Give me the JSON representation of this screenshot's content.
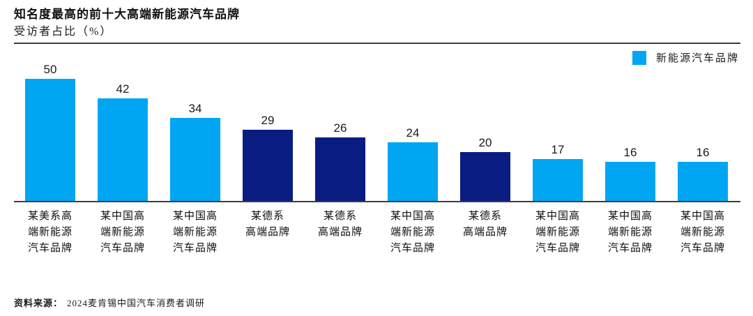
{
  "header": {
    "title": "知名度最高的前十大高端新能源汽车品牌",
    "subtitle": "受访者占比（%）"
  },
  "legend": {
    "label": "新能源汽车品牌",
    "swatch_color": "#00A6F2"
  },
  "chart_data": {
    "type": "bar",
    "title": "知名度最高的前十大高端新能源汽车品牌",
    "ylabel": "受访者占比（%）",
    "xlabel": "",
    "ylim": [
      0,
      56.5
    ],
    "grid": false,
    "legend_entries": [
      "新能源汽车品牌"
    ],
    "legend_position": "top-right",
    "categories": [
      "某美系高端新能源汽车品牌",
      "某中国高端新能源汽车品牌",
      "某中国高端新能源汽车品牌",
      "某德系高端品牌",
      "某德系高端品牌",
      "某中国高端新能源汽车品牌",
      "某德系高端品牌",
      "某中国高端新能源汽车品牌",
      "某中国高端新能源汽车品牌",
      "某中国高端新能源汽车品牌"
    ],
    "category_lines": [
      [
        "某美系高",
        "端新能源",
        "汽车品牌"
      ],
      [
        "某中国高",
        "端新能源",
        "汽车品牌"
      ],
      [
        "某中国高",
        "端新能源",
        "汽车品牌"
      ],
      [
        "某德系",
        "高端品牌"
      ],
      [
        "某德系",
        "高端品牌"
      ],
      [
        "某中国高",
        "端新能源",
        "汽车品牌"
      ],
      [
        "某德系",
        "高端品牌"
      ],
      [
        "某中国高",
        "端新能源",
        "汽车品牌"
      ],
      [
        "某中国高",
        "端新能源",
        "汽车品牌"
      ],
      [
        "某中国高",
        "端新能源",
        "汽车品牌"
      ]
    ],
    "values": [
      50,
      42,
      34,
      29,
      26,
      24,
      20,
      17,
      16,
      16
    ],
    "bar_colors": [
      "#00A6F2",
      "#00A6F2",
      "#00A6F2",
      "#081C82",
      "#081C82",
      "#00A6F2",
      "#081C82",
      "#00A6F2",
      "#00A6F2",
      "#00A6F2"
    ]
  },
  "footer": {
    "source_label": "资料来源：",
    "source_text": "2024麦肯锡中国汽车消费者调研"
  },
  "colors": {
    "light_blue": "#00A6F2",
    "dark_blue": "#081C82",
    "axis_line": "#3d3d3d"
  }
}
